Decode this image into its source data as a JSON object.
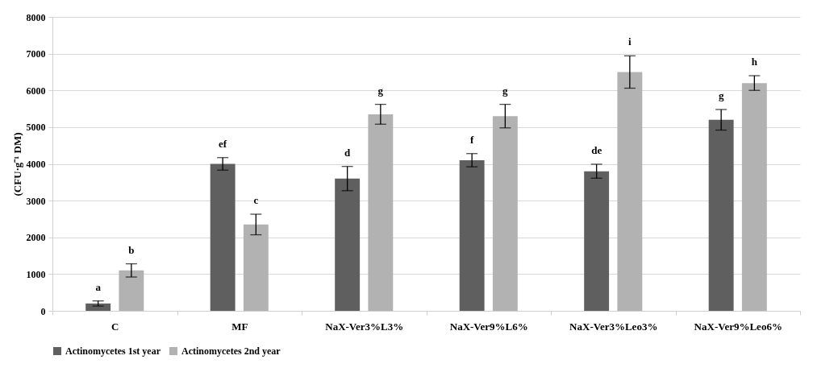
{
  "chart_data": {
    "type": "bar",
    "ylabel": "(CFU·g⁻¹ DM)",
    "categories": [
      "C",
      "MF",
      "NaX-Ver3%L3%",
      "NaX-Ver9%L6%",
      "NaX-Ver3%Leo3%",
      "NaX-Ver9%Leo6%"
    ],
    "series": [
      {
        "name": "Actinomycetes 1st year",
        "color": "#5f5f5f",
        "values": [
          200,
          4000,
          3600,
          4100,
          3800,
          5200
        ],
        "errors": [
          70,
          170,
          330,
          180,
          190,
          280
        ],
        "value_labels": [
          "a",
          "ef",
          "d",
          "f",
          "de",
          "g"
        ]
      },
      {
        "name": "Actinomycetes 2nd year",
        "color": "#b2b2b2",
        "values": [
          1100,
          2350,
          5350,
          5300,
          6500,
          6200
        ],
        "errors": [
          180,
          280,
          270,
          320,
          440,
          200
        ],
        "value_labels": [
          "b",
          "c",
          "g",
          "g",
          "i",
          "h"
        ]
      }
    ],
    "ylim": [
      0,
      8000
    ],
    "yticks": [
      0,
      1000,
      2000,
      3000,
      4000,
      5000,
      6000,
      7000,
      8000
    ],
    "grid": "y",
    "legend": "bottom"
  }
}
